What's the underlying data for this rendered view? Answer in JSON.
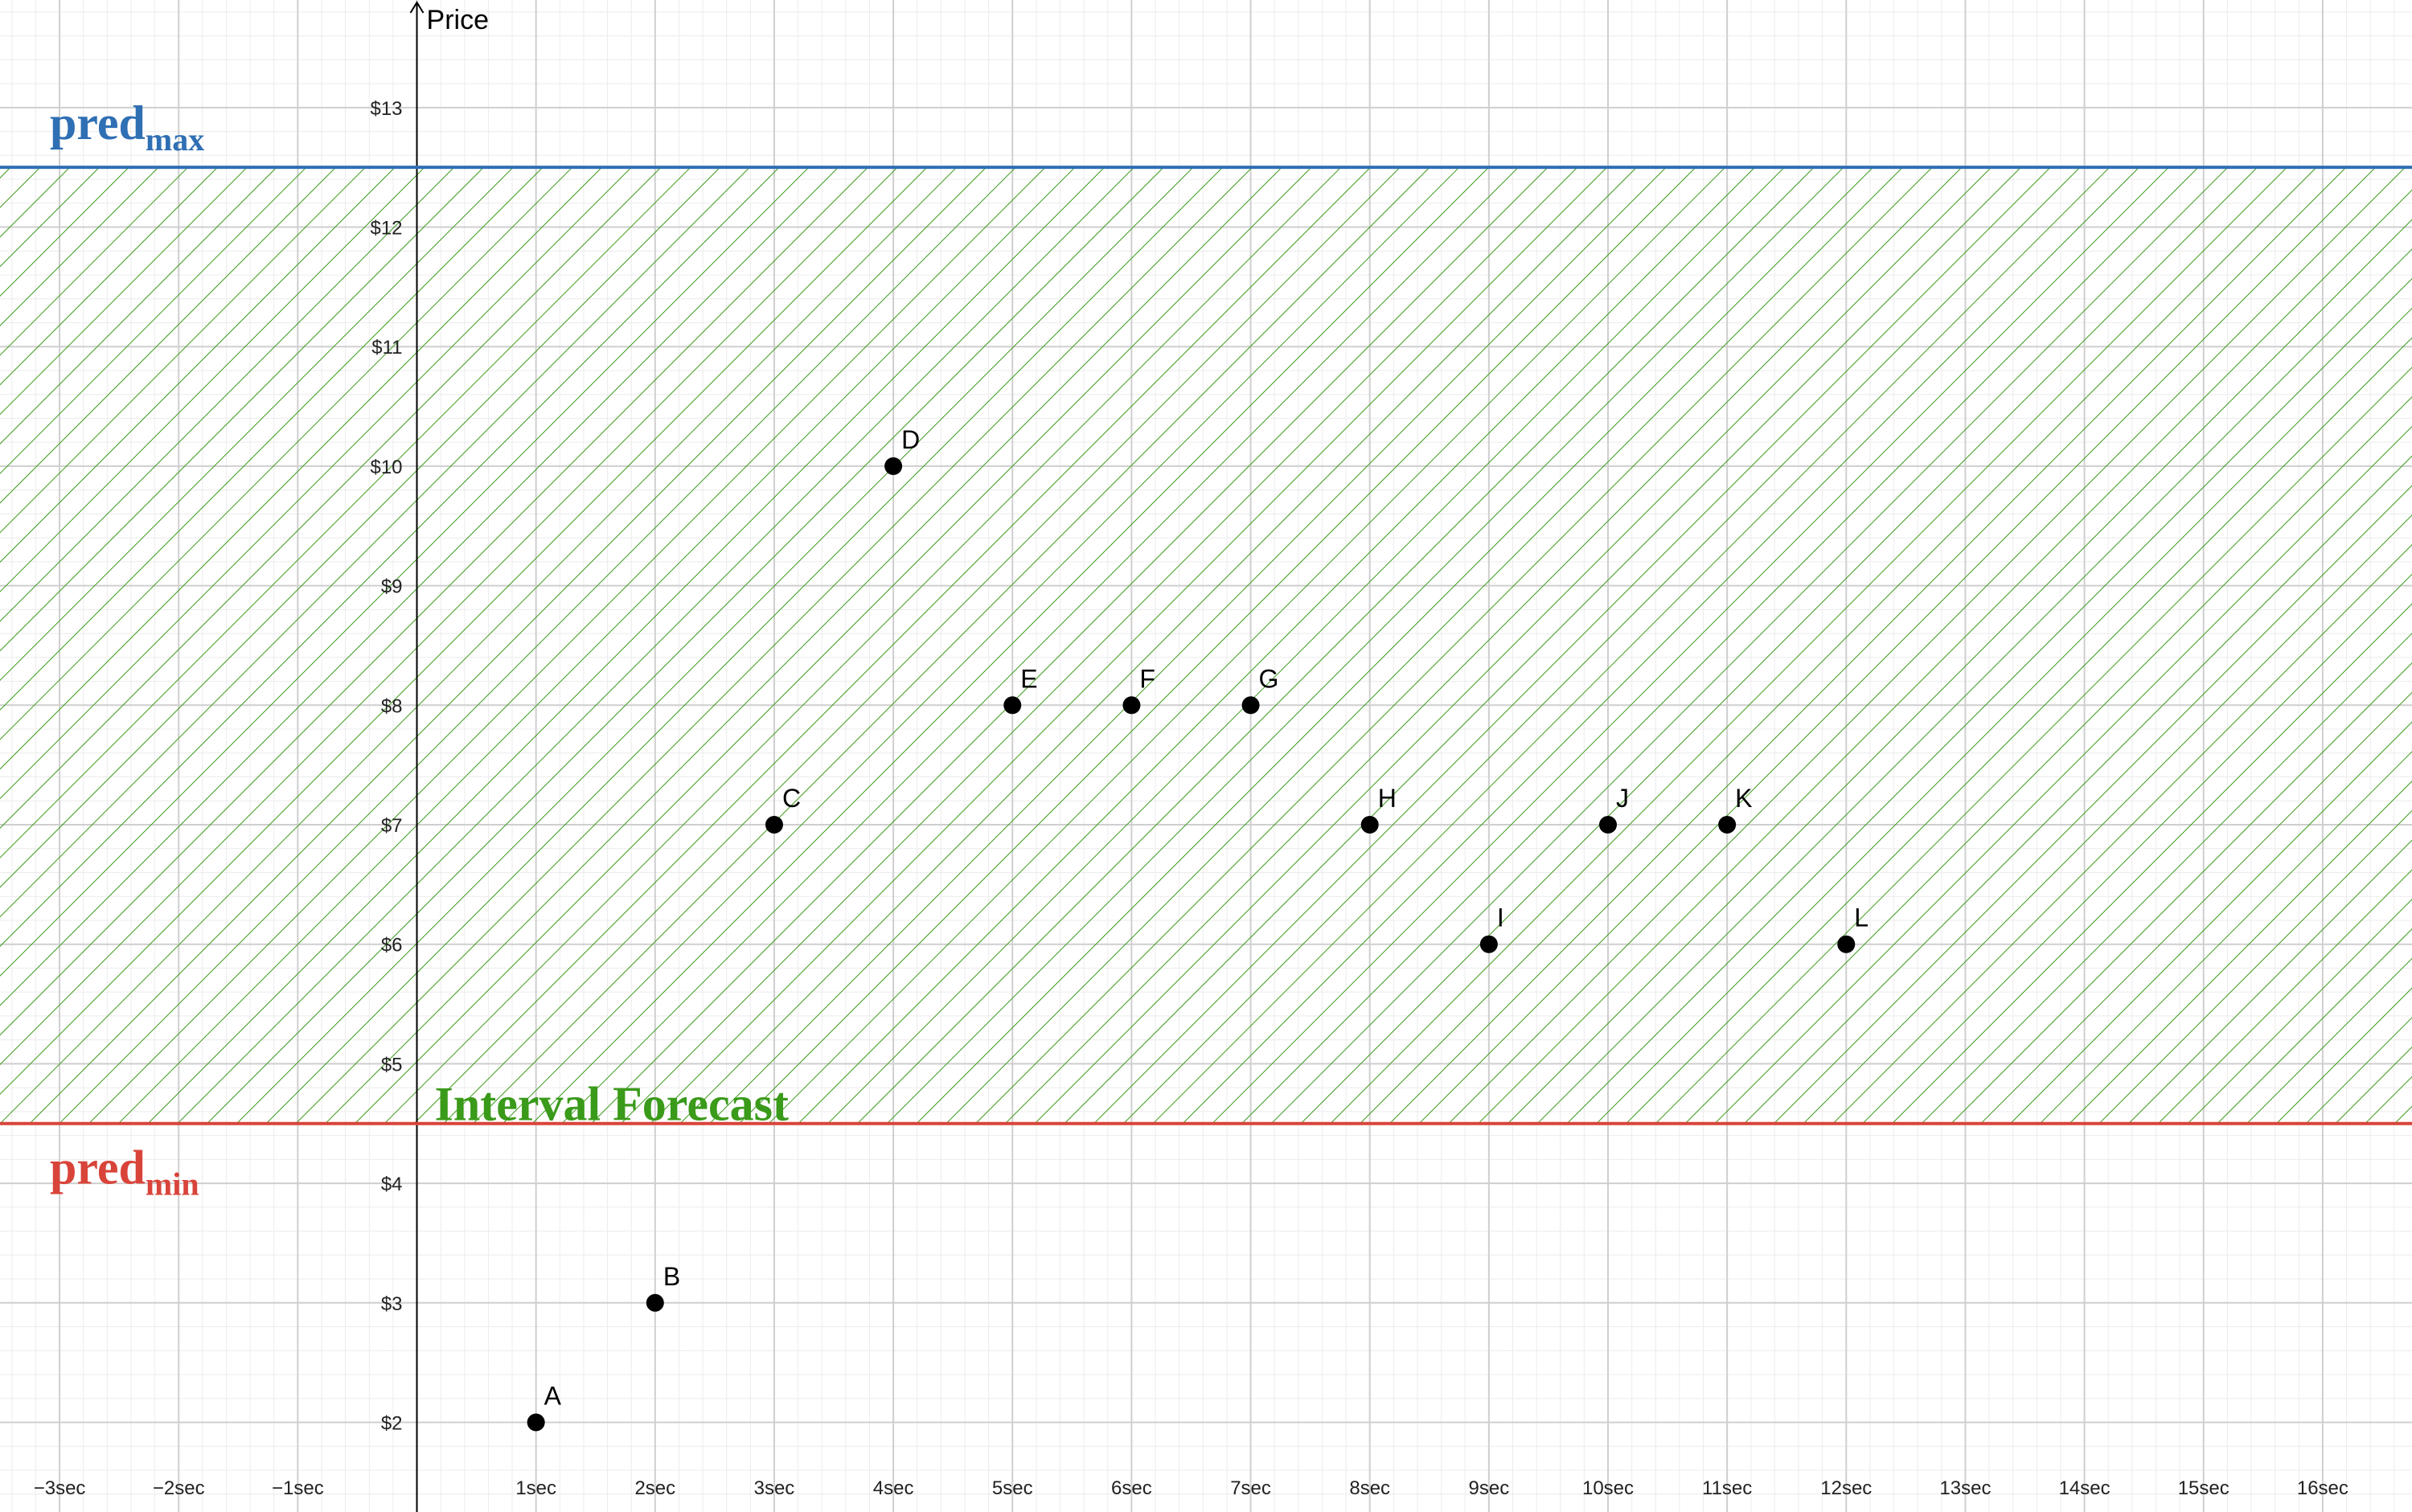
{
  "chart_data": {
    "type": "scatter",
    "title": "",
    "xlabel": "",
    "ylabel": "Price",
    "xlim": [
      -3.5,
      16.75
    ],
    "ylim": [
      1.25,
      13.9
    ],
    "grid": true,
    "x_ticks": [
      {
        "value": -3,
        "label": "−3sec"
      },
      {
        "value": -2,
        "label": "−2sec"
      },
      {
        "value": -1,
        "label": "−1sec"
      },
      {
        "value": 1,
        "label": "1sec"
      },
      {
        "value": 2,
        "label": "2sec"
      },
      {
        "value": 3,
        "label": "3sec"
      },
      {
        "value": 4,
        "label": "4sec"
      },
      {
        "value": 5,
        "label": "5sec"
      },
      {
        "value": 6,
        "label": "6sec"
      },
      {
        "value": 7,
        "label": "7sec"
      },
      {
        "value": 8,
        "label": "8sec"
      },
      {
        "value": 9,
        "label": "9sec"
      },
      {
        "value": 10,
        "label": "10sec"
      },
      {
        "value": 11,
        "label": "11sec"
      },
      {
        "value": 12,
        "label": "12sec"
      },
      {
        "value": 13,
        "label": "13sec"
      },
      {
        "value": 14,
        "label": "14sec"
      },
      {
        "value": 15,
        "label": "15sec"
      },
      {
        "value": 16,
        "label": "16sec"
      }
    ],
    "y_ticks": [
      {
        "value": 2,
        "label": "$2"
      },
      {
        "value": 3,
        "label": "$3"
      },
      {
        "value": 4,
        "label": "$4"
      },
      {
        "value": 5,
        "label": "$5"
      },
      {
        "value": 6,
        "label": "$6"
      },
      {
        "value": 7,
        "label": "$7"
      },
      {
        "value": 8,
        "label": "$8"
      },
      {
        "value": 9,
        "label": "$9"
      },
      {
        "value": 10,
        "label": "$10"
      },
      {
        "value": 11,
        "label": "$11"
      },
      {
        "value": 12,
        "label": "$12"
      },
      {
        "value": 13,
        "label": "$13"
      }
    ],
    "points": [
      {
        "label": "A",
        "x": 1,
        "y": 2
      },
      {
        "label": "B",
        "x": 2,
        "y": 3
      },
      {
        "label": "C",
        "x": 3,
        "y": 7
      },
      {
        "label": "D",
        "x": 4,
        "y": 10
      },
      {
        "label": "E",
        "x": 5,
        "y": 8
      },
      {
        "label": "F",
        "x": 6,
        "y": 8
      },
      {
        "label": "G",
        "x": 7,
        "y": 8
      },
      {
        "label": "H",
        "x": 8,
        "y": 7
      },
      {
        "label": "I",
        "x": 9,
        "y": 6
      },
      {
        "label": "J",
        "x": 10,
        "y": 7
      },
      {
        "label": "K",
        "x": 11,
        "y": 7
      },
      {
        "label": "L",
        "x": 12,
        "y": 6
      }
    ],
    "reference_lines": {
      "max": {
        "label_main": "pred",
        "label_sub": "max",
        "y": 12.5,
        "color": "#2f6fb4"
      },
      "min": {
        "label_main": "pred",
        "label_sub": "min",
        "y": 4.5,
        "color": "#d9443a"
      }
    },
    "band": {
      "label": "Interval Forecast",
      "y_low": 4.5,
      "y_high": 12.5,
      "color": "#3a9a1a"
    }
  }
}
